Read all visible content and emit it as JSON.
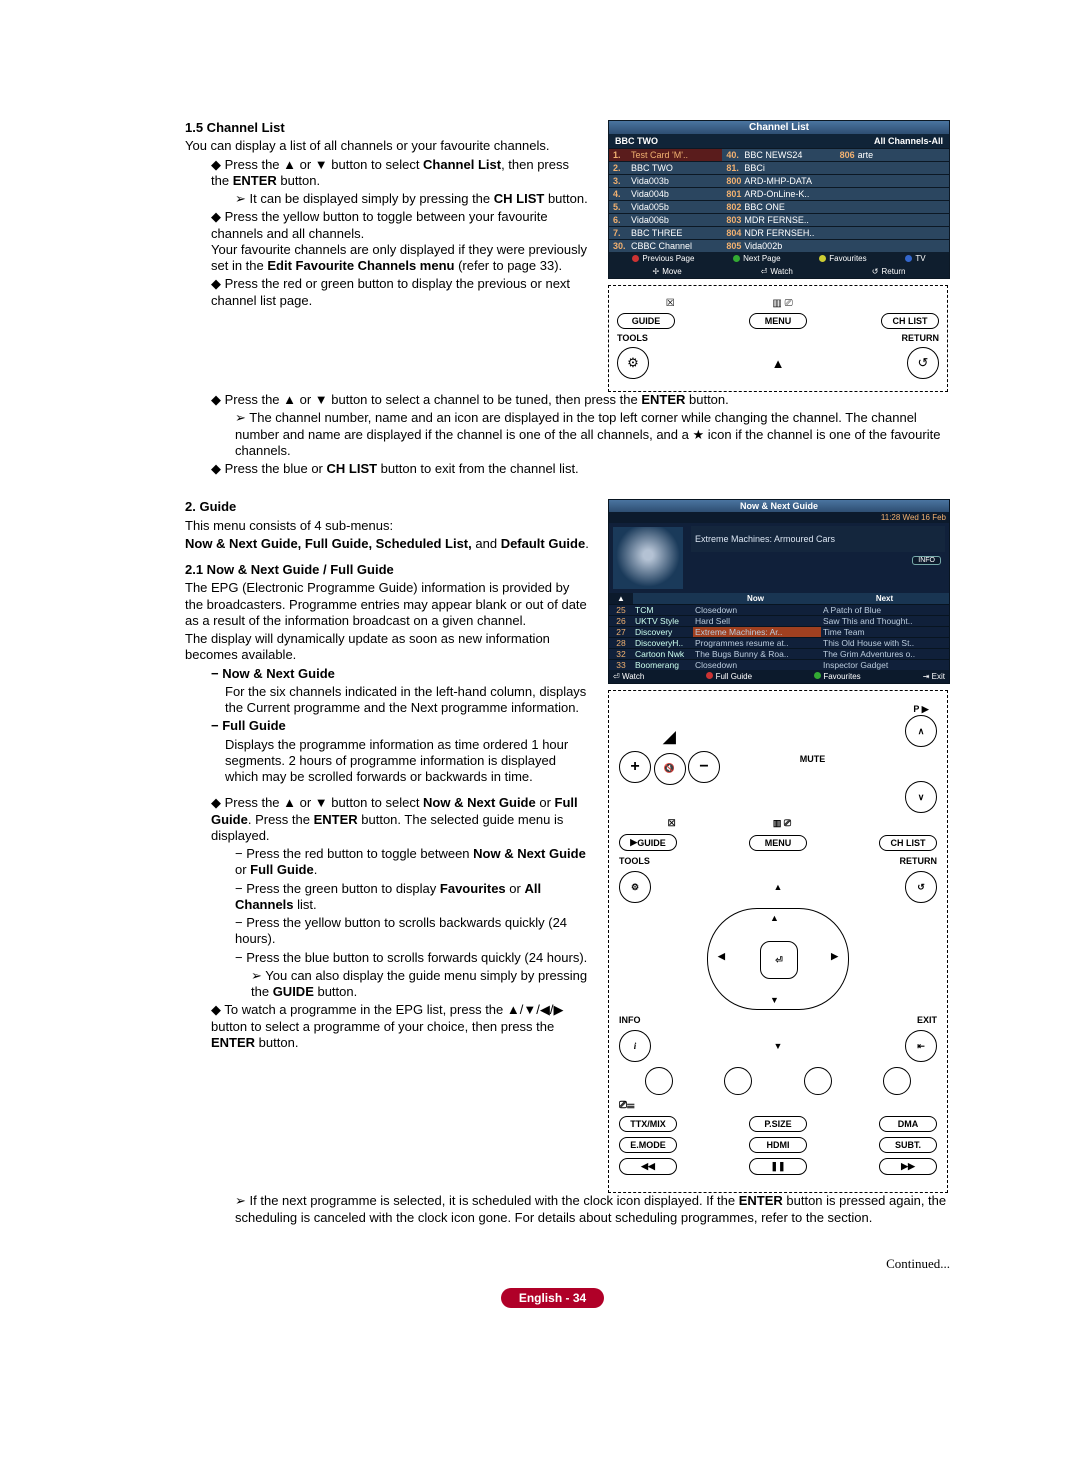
{
  "sec15": {
    "title": "1.5  Channel List",
    "intro": "You can display a list of all channels or your favourite channels.",
    "b1a": "Press the ▲ or ▼ button to select ",
    "b1b": "Channel List",
    "b1c": ", then press the ",
    "b1d": "ENTER",
    "b1e": " button.",
    "b1suba": "It can be displayed simply by pressing the ",
    "b1subb": "CH LIST",
    "b1subc": " button.",
    "b2a": "Press the yellow button to toggle between your favourite channels and all channels.",
    "b2b": "Your favourite channels are only displayed if they were previously set in the ",
    "b2c": "Edit Favourite Channels menu",
    "b2d": " (refer to page 33).",
    "b3": "Press the red or green button to display the previous or next channel list page.",
    "b4a": "Press the ▲ or ▼ button to select a channel to be tuned, then press the ",
    "b4b": "ENTER",
    "b4c": " button.",
    "b4sub": "The channel number, name and an icon are displayed in the top left corner while changing the channel. The channel number and name are displayed if the channel is one of the all channels, and a ★ icon if the channel is one of the favourite channels.",
    "b5a": "Press the blue or ",
    "b5b": "CH LIST",
    "b5c": " button to exit from the channel list."
  },
  "osd": {
    "title": "Channel List",
    "sub_l": "BBC TWO",
    "sub_r": "All Channels-All",
    "col1": [
      {
        "n": "1.",
        "t": "Test Card 'M'..",
        "sel": true
      },
      {
        "n": "2.",
        "t": "BBC TWO"
      },
      {
        "n": "3.",
        "t": "Vida003b"
      },
      {
        "n": "4.",
        "t": "Vida004b"
      },
      {
        "n": "5.",
        "t": "Vida005b"
      },
      {
        "n": "6.",
        "t": "Vida006b"
      },
      {
        "n": "7.",
        "t": "BBC THREE"
      },
      {
        "n": "30.",
        "t": "CBBC Channel"
      }
    ],
    "col2": [
      {
        "n": "40.",
        "t": "BBC NEWS24"
      },
      {
        "n": "81.",
        "t": "BBCi"
      },
      {
        "n": "800",
        "t": "ARD-MHP-DATA"
      },
      {
        "n": "801",
        "t": "ARD-OnLine-K.."
      },
      {
        "n": "802",
        "t": "BBC ONE"
      },
      {
        "n": "803",
        "t": "MDR FERNSE.."
      },
      {
        "n": "804",
        "t": "NDR FERNSEH.."
      },
      {
        "n": "805",
        "t": "Vida002b"
      }
    ],
    "col3": [
      {
        "n": "806",
        "t": "arte"
      }
    ],
    "nav": {
      "prev": "Previous Page",
      "next": "Next Page",
      "fav": "Favourites",
      "tv": "TV"
    },
    "nav2": {
      "move": "Move",
      "watch": "Watch",
      "ret": "Return"
    }
  },
  "mini_remote": {
    "guide": "GUIDE",
    "menu": "MENU",
    "chlist": "CH LIST",
    "tools": "TOOLS",
    "return": "RETURN"
  },
  "sec2": {
    "title": "2.   Guide",
    "intro": "This menu consists of 4 sub-menus:",
    "items": "Now & Next Guide, Full Guide, Scheduled List, ",
    "items2": "and ",
    "items3": "Default Guide",
    "period": "."
  },
  "sec21": {
    "title": "2.1  Now & Next Guide / Full Guide",
    "p1": "The EPG (Electronic Programme Guide) information is provided by the broadcasters. Programme entries may appear blank or out of date as a result of the information broadcast on a given channel.",
    "p2": "The display will dynamically update as soon as new information becomes available.",
    "nn": "Now & Next Guide",
    "nntext": "For the six channels indicated in the left-hand column, displays the Current programme and the Next programme information.",
    "fg": "Full Guide",
    "fgtext": "Displays the programme information as time ordered 1 hour segments. 2 hours of programme information is displayed which may be scrolled forwards or backwards in time.",
    "b1a": "Press the ▲ or ▼ button to select ",
    "b1b": "Now & Next Guide",
    "b1c": " or ",
    "b1d": "Full Guide",
    "b1e": ". Press the ",
    "b1f": "ENTER",
    "b1g": " button. The selected guide menu is displayed.",
    "s1a": "Press the red button to toggle between ",
    "s1b": "Now & Next Guide",
    "s1c": " or ",
    "s1d": "Full Guide",
    "s1e": ".",
    "s2a": "Press the green button to display ",
    "s2b": "Favourites",
    "s2c": " or ",
    "s2d": "All Channels",
    "s2e": " list.",
    "s3": "Press the yellow button to scrolls backwards quickly (24 hours).",
    "s4": "Press the blue button to scrolls forwards quickly (24 hours).",
    "s4suba": "You can also display the guide menu simply by pressing the ",
    "s4subb": "GUIDE",
    "s4subc": " button.",
    "b2a": "To watch a programme in the EPG list, press the ▲/▼/◀/▶ button to select a programme of your choice, then press the ",
    "b2b": "ENTER",
    "b2c": " button.",
    "b2suba": "If the next programme is selected, it is scheduled with the clock icon displayed. If the ",
    "b2subb": "ENTER",
    "b2subc": " button is pressed again, the scheduling is canceled with the clock icon gone. For details about scheduling programmes, refer to the section."
  },
  "epg": {
    "title": "Now & Next Guide",
    "time": "11:28 Wed 16 Feb",
    "show": "Extreme Machines: Armoured Cars",
    "info": "INFO",
    "cols": {
      "c0": "▲",
      "c1": "",
      "now": "Now",
      "next": "Next"
    },
    "rows": [
      {
        "n": "25",
        "ch": "TCM",
        "now": "Closedown",
        "next": "A Patch of Blue"
      },
      {
        "n": "26",
        "ch": "UKTV Style",
        "now": "Hard Sell",
        "next": "Saw This and Thought.."
      },
      {
        "n": "27",
        "ch": "Discovery",
        "now": "Extreme Machines: Ar..",
        "next": "Time Team",
        "hi": true
      },
      {
        "n": "28",
        "ch": "DiscoveryH..",
        "now": "Programmes resume at..",
        "next": "This Old House with St.."
      },
      {
        "n": "32",
        "ch": "Cartoon Nwk",
        "now": "The Bugs Bunny & Roa..",
        "next": "The Grim Adventures o.."
      },
      {
        "n": "33",
        "ch": "Boomerang",
        "now": "Closedown",
        "next": "Inspector Gadget"
      }
    ],
    "foot": {
      "watch": "Watch",
      "full": "Full Guide",
      "fav": "Favourites",
      "exit": "Exit"
    }
  },
  "remote": {
    "mute": "MUTE",
    "guide": "GUIDE",
    "menu": "MENU",
    "chlist": "CH LIST",
    "tools": "TOOLS",
    "return": "RETURN",
    "info": "INFO",
    "exit": "EXIT",
    "ttx": "TTX/MIX",
    "psize": "P.SIZE",
    "dma": "DMA",
    "emode": "E.MODE",
    "hdmi": "HDMI",
    "subt": "SUBT."
  },
  "continued": "Continued...",
  "footer": "English - 34"
}
